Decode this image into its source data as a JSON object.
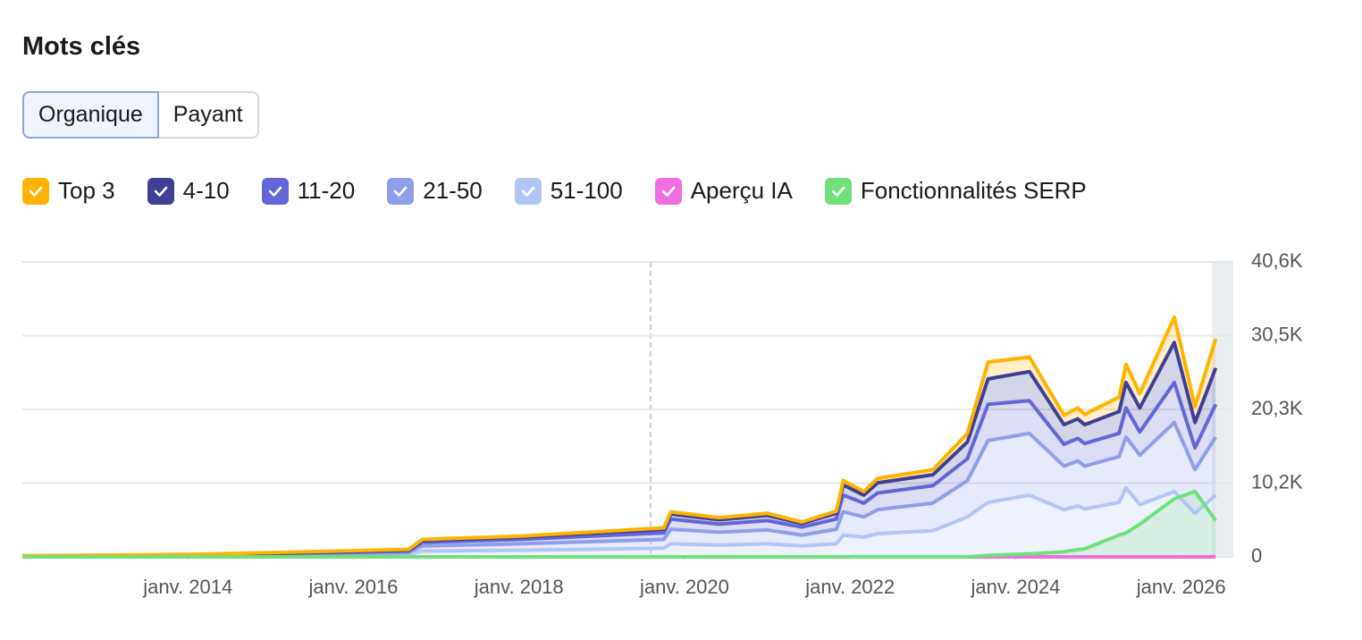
{
  "title": "Mots clés",
  "tabs": [
    "Organique",
    "Payant"
  ],
  "chart_data": {
    "type": "area",
    "stacked": true,
    "x": [
      "2012-01",
      "2014-01",
      "2016-01",
      "2016-09",
      "2016-11",
      "2018-01",
      "2019-10",
      "2019-11",
      "2020-06",
      "2021-01",
      "2021-06",
      "2021-11",
      "2021-12",
      "2022-03",
      "2022-05",
      "2023-01",
      "2023-06",
      "2023-09",
      "2024-03",
      "2024-08",
      "2024-10",
      "2024-11",
      "2025-04",
      "2025-05",
      "2025-07",
      "2025-12",
      "2026-03",
      "2026-06"
    ],
    "xlim": [
      "2012-01",
      "2026-07"
    ],
    "xticks": [
      {
        "value": "2014-01",
        "label": "janv. 2014"
      },
      {
        "value": "2016-01",
        "label": "janv. 2016"
      },
      {
        "value": "2018-01",
        "label": "janv. 2018"
      },
      {
        "value": "2020-01",
        "label": "janv. 2020"
      },
      {
        "value": "2022-01",
        "label": "janv. 2022"
      },
      {
        "value": "2024-01",
        "label": "janv. 2024"
      },
      {
        "value": "2026-01",
        "label": "janv. 2026"
      }
    ],
    "ylim": [
      0,
      40600
    ],
    "yticks": [
      0,
      {
        "value": 10150,
        "label": "10,2K"
      },
      {
        "value": 20300,
        "label": "20,3K"
      },
      {
        "value": 30450,
        "label": "30,5K"
      },
      {
        "value": 40600,
        "label": "40,6K"
      }
    ],
    "grid": true,
    "series": [
      {
        "name": "Top 3",
        "color": "#ffb300",
        "stacked": true,
        "values": [
          30,
          40,
          100,
          100,
          150,
          150,
          200,
          300,
          300,
          300,
          200,
          300,
          600,
          500,
          600,
          700,
          1200,
          2300,
          2000,
          1300,
          1500,
          1400,
          2000,
          2500,
          2000,
          3500,
          2200,
          4000
        ]
      },
      {
        "name": "4-10",
        "color": "#3f3f94",
        "stacked": true,
        "values": [
          20,
          40,
          100,
          150,
          250,
          300,
          500,
          700,
          600,
          700,
          500,
          800,
          1400,
          1100,
          1400,
          1500,
          2300,
          3500,
          4000,
          2700,
          2700,
          2600,
          3000,
          3500,
          3300,
          5500,
          3500,
          5000
        ]
      },
      {
        "name": "11-20",
        "color": "#6366d6",
        "stacked": true,
        "values": [
          20,
          60,
          150,
          200,
          500,
          600,
          900,
          1400,
          1100,
          1300,
          1100,
          1400,
          2300,
          1900,
          2300,
          2400,
          3000,
          5000,
          4500,
          3000,
          3100,
          3100,
          3200,
          4000,
          3200,
          5500,
          3000,
          4500
        ]
      },
      {
        "name": "21-50",
        "color": "#8f9ee8",
        "stacked": true,
        "values": [
          30,
          80,
          200,
          250,
          700,
          900,
          1200,
          2000,
          1800,
          1900,
          1500,
          2000,
          3200,
          2800,
          3300,
          3800,
          5000,
          8500,
          8500,
          6000,
          6200,
          5900,
          6300,
          7000,
          6800,
          9500,
          6000,
          8000
        ]
      },
      {
        "name": "51-100",
        "color": "#b3c5f5",
        "stacked": true,
        "values": [
          50,
          100,
          300,
          350,
          800,
          900,
          1200,
          1800,
          1600,
          1800,
          1500,
          1800,
          3000,
          2700,
          3200,
          3600,
          5500,
          7500,
          8500,
          6500,
          7000,
          6600,
          7500,
          9500,
          7200,
          9000,
          6000,
          8500
        ]
      },
      {
        "name": "Aperçu IA",
        "color": "#f06ee0",
        "stacked": false,
        "values": [
          0,
          0,
          0,
          0,
          0,
          0,
          0,
          0,
          0,
          0,
          0,
          0,
          0,
          0,
          0,
          0,
          0,
          0,
          0,
          0,
          0,
          0,
          0,
          0,
          0,
          0,
          0,
          0
        ]
      },
      {
        "name": "Fonctionnalités SERP",
        "color": "#6fe07a",
        "stacked": false,
        "values": [
          0,
          0,
          0,
          0,
          0,
          0,
          0,
          0,
          0,
          0,
          0,
          0,
          0,
          0,
          0,
          0,
          0,
          200,
          400,
          700,
          1000,
          1100,
          3000,
          3300,
          4500,
          8000,
          9000,
          5000
        ]
      }
    ]
  }
}
